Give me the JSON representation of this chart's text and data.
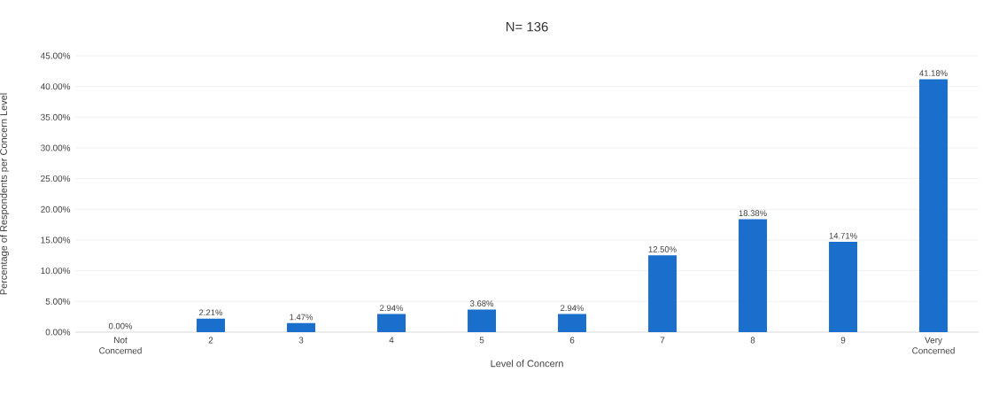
{
  "chart_data": {
    "type": "bar",
    "title": "N= 136",
    "xlabel": "Level of Concern",
    "ylabel": "Percentage of Respondents per Concern Level",
    "categories": [
      "Not Concerned",
      "2",
      "3",
      "4",
      "5",
      "6",
      "7",
      "8",
      "9",
      "Very Concerned"
    ],
    "values": [
      0,
      2.21,
      1.47,
      2.94,
      3.68,
      2.94,
      12.5,
      18.38,
      14.71,
      41.18
    ],
    "value_labels": [
      "0.00%",
      "2.21%",
      "1.47%",
      "2.94%",
      "3.68%",
      "2.94%",
      "12.50%",
      "18.38%",
      "14.71%",
      "41.18%"
    ],
    "color": "#1a6fcc",
    "ylim": [
      0,
      45
    ],
    "yticks": [
      {
        "value": 0,
        "label": "0.00%"
      },
      {
        "value": 5,
        "label": "5.00%"
      },
      {
        "value": 10,
        "label": "10.00%"
      },
      {
        "value": 15,
        "label": "15.00%"
      },
      {
        "value": 20,
        "label": "20.00%"
      },
      {
        "value": 25,
        "label": "25.00%"
      },
      {
        "value": 30,
        "label": "30.00%"
      },
      {
        "value": 35,
        "label": "35.00%"
      },
      {
        "value": 40,
        "label": "40.00%"
      },
      {
        "value": 45,
        "label": "45.00%"
      }
    ],
    "grid": "y"
  }
}
